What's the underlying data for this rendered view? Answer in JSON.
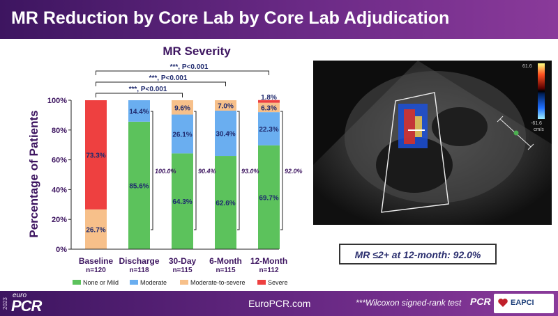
{
  "slide": {
    "title": "MR Reduction by Core Lab by Core Lab Adjudication",
    "callout": "MR ≤2+ at 12-month: 92.0%",
    "footer_url": "EuroPCR.com",
    "footnote": "***Wilcoxon signed-rank test",
    "logo_year": "2023",
    "logo_euro": "euro",
    "logo_pcr": "PCR",
    "badge_pcr": "PCR",
    "badge_eapci": "EAPCI"
  },
  "image": {
    "colorbar_top": "61.6",
    "colorbar_bottom": "-61.6",
    "colorbar_unit": "cm/s"
  },
  "colors": {
    "none_or_mild": "#5cc25c",
    "moderate": "#6aaef0",
    "moderate_to_severe": "#f7c08a",
    "severe": "#ee4040",
    "title_text": "#3d1560",
    "header": "#5a2078"
  },
  "chart_data": {
    "type": "bar",
    "stacked": true,
    "title": "MR Severity",
    "ylabel": "Percentage of Patients",
    "ylim": [
      0,
      100
    ],
    "yticks": [
      "0%",
      "20%",
      "40%",
      "60%",
      "80%",
      "100%"
    ],
    "categories": [
      "Baseline",
      "Discharge",
      "30-Day",
      "6-Month",
      "12-Month"
    ],
    "n_labels": [
      "n=120",
      "n=118",
      "n=115",
      "n=115",
      "n=112"
    ],
    "legend_position": "bottom",
    "series": [
      {
        "name": "None or Mild",
        "color": "#5cc25c",
        "values": [
          0,
          85.6,
          64.3,
          62.6,
          69.7
        ],
        "labels": [
          "",
          "85.6%",
          "64.3%",
          "62.6%",
          "69.7%"
        ]
      },
      {
        "name": "Moderate",
        "color": "#6aaef0",
        "values": [
          0,
          14.4,
          26.1,
          30.4,
          22.3
        ],
        "labels": [
          "",
          "14.4%",
          "26.1%",
          "30.4%",
          "22.3%"
        ]
      },
      {
        "name": "Moderate-to-severe",
        "color": "#f7c08a",
        "values": [
          26.7,
          0,
          9.6,
          7.0,
          6.3
        ],
        "labels": [
          "26.7%",
          "",
          "9.6%",
          "7.0%",
          "6.3%"
        ]
      },
      {
        "name": "Severe",
        "color": "#ee4040",
        "values": [
          73.3,
          0,
          0,
          0,
          1.8
        ],
        "labels": [
          "73.3%",
          "",
          "",
          "",
          "1.8%"
        ]
      }
    ],
    "brackets": [
      {
        "category": "Discharge",
        "label": "100.0%"
      },
      {
        "category": "30-Day",
        "label": "90.4%"
      },
      {
        "category": "6-Month",
        "label": "93.0%"
      },
      {
        "category": "12-Month",
        "label": "92.0%"
      }
    ],
    "significance": [
      {
        "from": "Baseline",
        "to": "30-Day",
        "label": "***,  P<0.001"
      },
      {
        "from": "Baseline",
        "to": "6-Month",
        "label": "***,  P<0.001"
      },
      {
        "from": "Baseline",
        "to": "12-Month",
        "label": "***,  P<0.001"
      }
    ]
  }
}
